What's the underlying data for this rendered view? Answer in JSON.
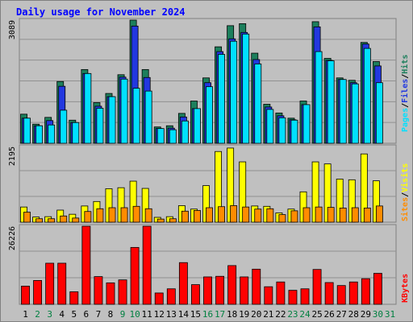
{
  "title": "Daily usage for November 2024",
  "colors": {
    "hits": "#1c7f5c",
    "files": "#2238e0",
    "pages": "#00e0ff",
    "visits": "#ffff00",
    "sites": "#ff8c00",
    "kbytes": "#ff0000",
    "weekend_label": "#008040",
    "weekday_label": "#000000",
    "frame_bg": "#c0c0c0",
    "panel_bg": "#c0c0c0"
  },
  "chart_data": [
    {
      "type": "bar",
      "panel": "hits-files-pages",
      "ymax_label": "3089",
      "ymax": 3089,
      "legend": [
        {
          "key": "pages",
          "label": "Pages"
        },
        {
          "key": "sep1",
          "label": "/"
        },
        {
          "key": "files",
          "label": "Files"
        },
        {
          "key": "sep2",
          "label": "/"
        },
        {
          "key": "hits",
          "label": "Hits"
        }
      ],
      "categories": [
        "1",
        "2",
        "3",
        "4",
        "5",
        "6",
        "7",
        "8",
        "9",
        "10",
        "11",
        "12",
        "13",
        "14",
        "15",
        "16",
        "17",
        "18",
        "19",
        "20",
        "21",
        "22",
        "23",
        "24",
        "25",
        "26",
        "27",
        "28",
        "29",
        "30",
        "31"
      ],
      "series": [
        {
          "name": "Hits",
          "values": [
            730,
            480,
            650,
            1550,
            580,
            1850,
            1020,
            1250,
            1720,
            3089,
            1850,
            410,
            440,
            750,
            1060,
            1640,
            2420,
            2950,
            3000,
            2260,
            980,
            760,
            630,
            1060,
            3050,
            2130,
            1640,
            1580,
            2530,
            2050,
            0
          ]
        },
        {
          "name": "Files",
          "values": [
            630,
            440,
            570,
            1430,
            520,
            1750,
            930,
            1170,
            1660,
            2940,
            1650,
            370,
            380,
            660,
            870,
            1520,
            2300,
            2620,
            2780,
            2100,
            910,
            690,
            590,
            970,
            2920,
            2080,
            1600,
            1520,
            2490,
            1940,
            0
          ]
        },
        {
          "name": "Pages",
          "values": [
            630,
            440,
            460,
            830,
            520,
            1750,
            880,
            1170,
            1610,
            1380,
            1310,
            370,
            340,
            560,
            870,
            1420,
            2230,
            2560,
            2740,
            1990,
            850,
            640,
            580,
            970,
            2300,
            2070,
            1600,
            1490,
            2380,
            1520,
            0
          ]
        }
      ]
    },
    {
      "type": "bar",
      "panel": "visits-sites",
      "ymax_label": "2195",
      "ymax": 2195,
      "legend": [
        {
          "key": "sites",
          "label": "Sites"
        },
        {
          "key": "sep1",
          "label": "/"
        },
        {
          "key": "visits",
          "label": "Visits"
        }
      ],
      "categories": [
        "1",
        "2",
        "3",
        "4",
        "5",
        "6",
        "7",
        "8",
        "9",
        "10",
        "11",
        "12",
        "13",
        "14",
        "15",
        "16",
        "17",
        "18",
        "19",
        "20",
        "21",
        "22",
        "23",
        "24",
        "25",
        "26",
        "27",
        "28",
        "29",
        "30",
        "31"
      ],
      "series": [
        {
          "name": "Visits",
          "values": [
            440,
            150,
            160,
            350,
            230,
            470,
            600,
            970,
            1000,
            1190,
            980,
            140,
            160,
            480,
            380,
            1060,
            2050,
            2150,
            1750,
            470,
            460,
            270,
            380,
            880,
            1750,
            1690,
            1250,
            1230,
            1980,
            1200,
            0
          ]
        },
        {
          "name": "Sites",
          "values": [
            290,
            100,
            100,
            180,
            120,
            310,
            390,
            420,
            420,
            460,
            390,
            90,
            100,
            320,
            340,
            420,
            450,
            480,
            440,
            380,
            390,
            220,
            330,
            420,
            440,
            430,
            410,
            420,
            410,
            470,
            0
          ]
        }
      ]
    },
    {
      "type": "bar",
      "panel": "kbytes",
      "ymax_label": "26226",
      "ymax": 26226,
      "legend": [
        {
          "key": "kbytes",
          "label": "KBytes"
        }
      ],
      "categories": [
        "1",
        "2",
        "3",
        "4",
        "5",
        "6",
        "7",
        "8",
        "9",
        "10",
        "11",
        "12",
        "13",
        "14",
        "15",
        "16",
        "17",
        "18",
        "19",
        "20",
        "21",
        "22",
        "23",
        "24",
        "25",
        "26",
        "27",
        "28",
        "29",
        "30",
        "31"
      ],
      "series": [
        {
          "name": "KBytes",
          "values": [
            6100,
            8000,
            13800,
            13800,
            4200,
            26226,
            9300,
            7200,
            8200,
            19100,
            26226,
            3800,
            5200,
            14000,
            6600,
            9200,
            9400,
            13000,
            9200,
            11800,
            5900,
            7500,
            4700,
            5200,
            11700,
            7300,
            6300,
            7500,
            8600,
            10400,
            0
          ]
        }
      ]
    }
  ]
}
